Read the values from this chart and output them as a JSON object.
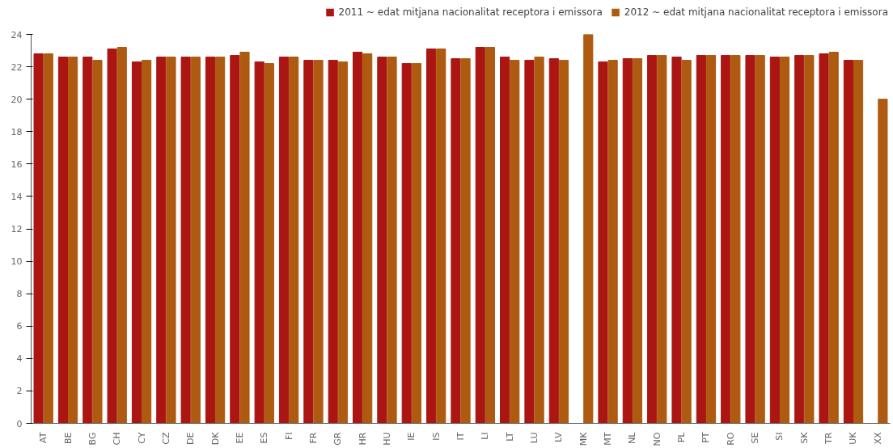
{
  "chart_data": {
    "type": "bar",
    "categories": [
      "AT",
      "BE",
      "BG",
      "CH",
      "CY",
      "CZ",
      "DE",
      "DK",
      "EE",
      "ES",
      "FI",
      "FR",
      "GR",
      "HR",
      "HU",
      "IE",
      "IS",
      "IT",
      "LI",
      "LT",
      "LU",
      "LV",
      "MK",
      "MT",
      "NL",
      "NO",
      "PL",
      "PT",
      "RO",
      "SE",
      "SI",
      "SK",
      "TR",
      "UK",
      "XX"
    ],
    "series": [
      {
        "name": "2011 ~ edat mitjana nacionalitat receptora i emissora",
        "color": "#ab1512",
        "values": [
          22.8,
          22.6,
          22.6,
          23.1,
          22.3,
          22.6,
          22.6,
          22.6,
          22.7,
          22.3,
          22.6,
          22.4,
          22.4,
          22.9,
          22.6,
          22.2,
          23.1,
          22.5,
          23.2,
          22.6,
          22.4,
          22.5,
          0,
          22.3,
          22.5,
          22.7,
          22.6,
          22.7,
          22.7,
          22.7,
          22.6,
          22.7,
          22.8,
          22.4,
          0
        ]
      },
      {
        "name": "2012 ~ edat mitjana nacionalitat receptora i emissora",
        "color": "#ae5a11",
        "values": [
          22.8,
          22.6,
          22.4,
          23.2,
          22.4,
          22.6,
          22.6,
          22.6,
          22.9,
          22.2,
          22.6,
          22.4,
          22.3,
          22.8,
          22.6,
          22.2,
          23.1,
          22.5,
          23.2,
          22.4,
          22.6,
          22.4,
          24.0,
          22.4,
          22.5,
          22.7,
          22.4,
          22.7,
          22.7,
          22.7,
          22.6,
          22.7,
          22.9,
          22.4,
          20.0
        ]
      }
    ],
    "ylim": [
      0,
      24
    ],
    "yticks": [
      0,
      2,
      4,
      6,
      8,
      10,
      12,
      14,
      16,
      18,
      20,
      22,
      24
    ],
    "grid": false,
    "legend": "top right"
  }
}
